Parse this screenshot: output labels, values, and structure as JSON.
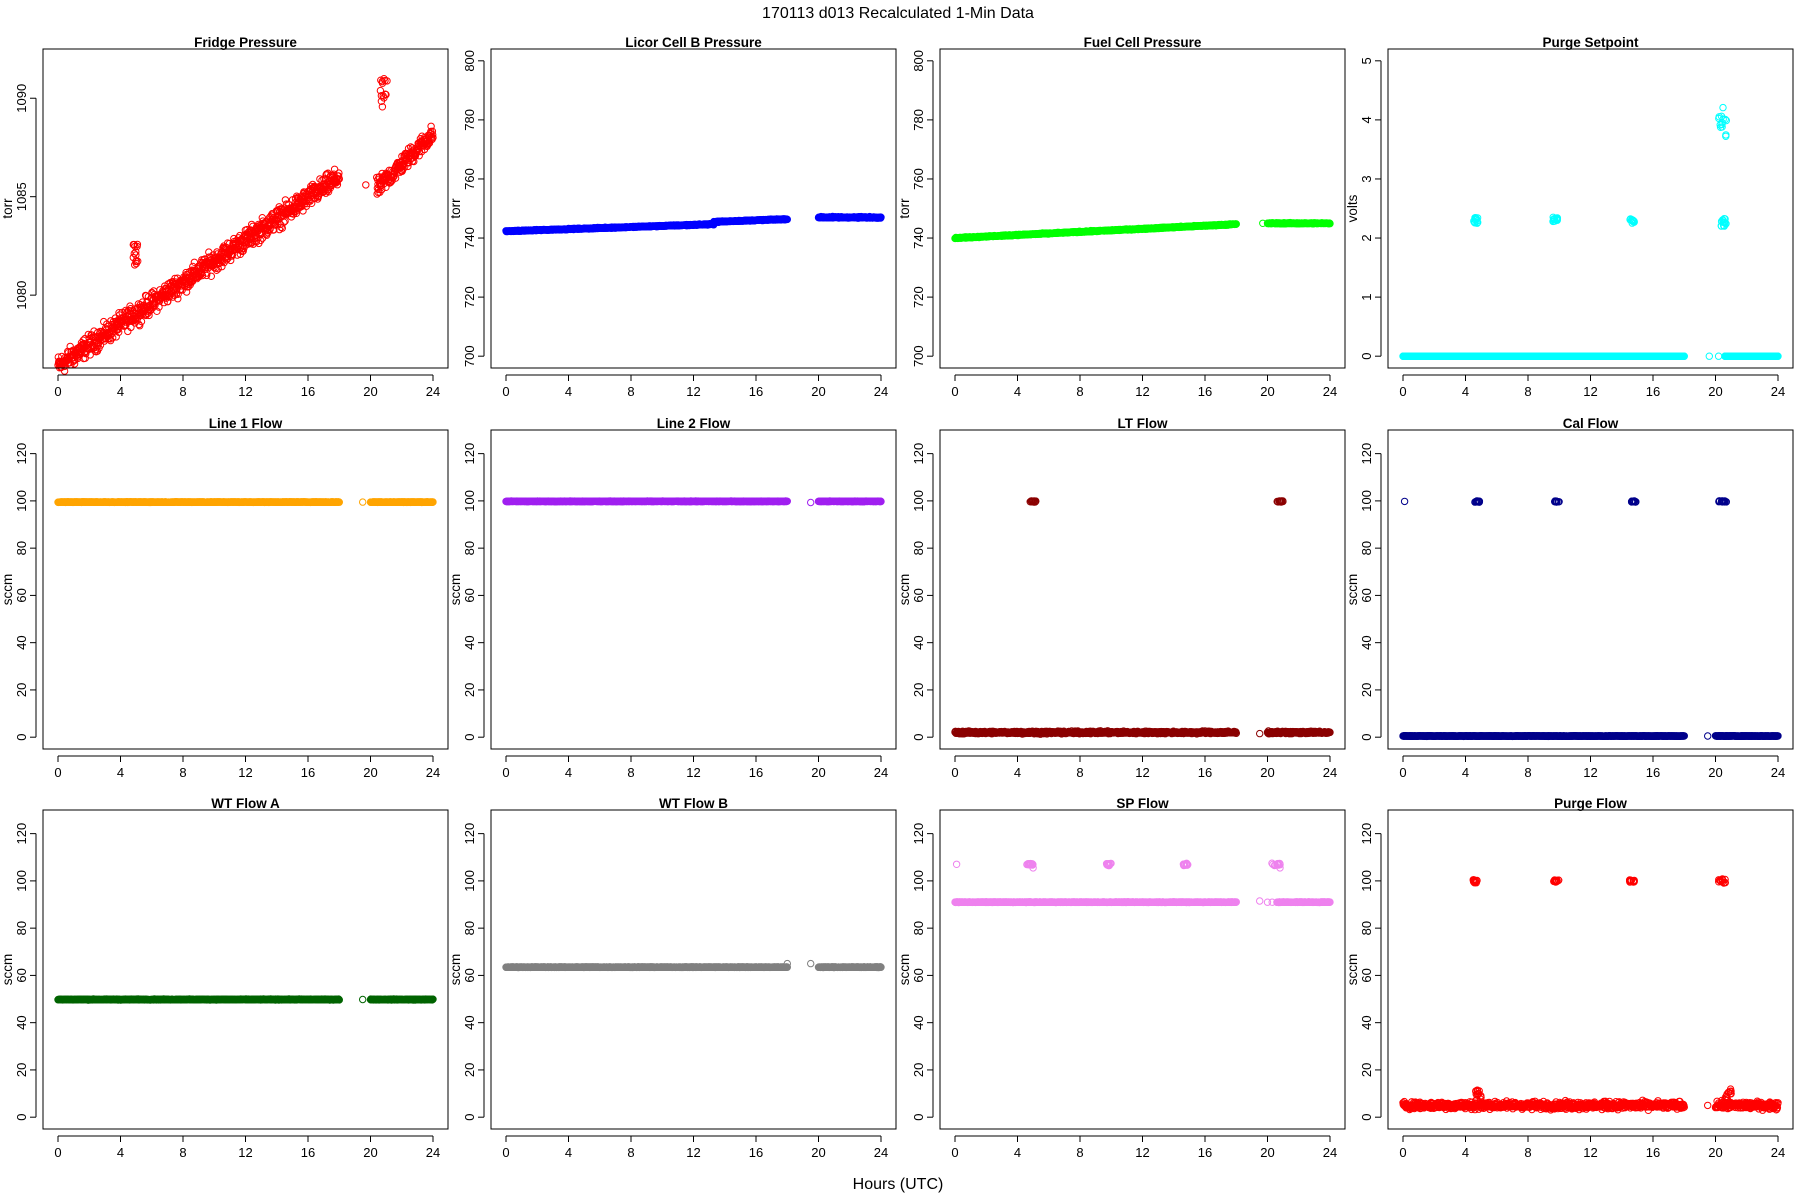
{
  "page": {
    "title": "170113   d013   Recalculated 1-Min Data",
    "xlabel": "Hours (UTC)"
  },
  "chart_data": [
    {
      "type": "scatter",
      "title": "Fridge Pressure",
      "ylabel": "torr",
      "color": "#ff0000",
      "xlim": [
        -0.96,
        24.96
      ],
      "ylim": [
        1076.3,
        1092.5
      ],
      "xticks": [
        0,
        4,
        8,
        12,
        16,
        20,
        24
      ],
      "yticks": [
        1080,
        1085,
        1090
      ],
      "segments": [
        {
          "x": [
            0.0,
            18.0
          ],
          "y": [
            1076.4,
            1086.0
          ],
          "noise": 0.45
        },
        {
          "x": [
            20.4,
            24.0
          ],
          "y": [
            1085.4,
            1088.2
          ],
          "noise": 0.4
        }
      ],
      "clusters": [
        {
          "x": [
            4.8,
            5.1
          ],
          "y": [
            1081.5,
            1082.7
          ]
        },
        {
          "x": [
            20.6,
            21.1
          ],
          "y": [
            1089.5,
            1091.0
          ]
        }
      ],
      "isolated": [
        {
          "x": 19.7,
          "y": 1085.6
        }
      ]
    },
    {
      "type": "scatter",
      "title": "Licor Cell B Pressure",
      "ylabel": "torr",
      "color": "#0000ff",
      "xlim": [
        -0.96,
        24.96
      ],
      "ylim": [
        696,
        804
      ],
      "xticks": [
        0,
        4,
        8,
        12,
        16,
        20,
        24
      ],
      "yticks": [
        700,
        720,
        740,
        760,
        780,
        800
      ],
      "segments": [
        {
          "x": [
            0.0,
            13.3
          ],
          "y": [
            742.3,
            744.7
          ],
          "noise": 0.15
        },
        {
          "x": [
            13.3,
            18.0
          ],
          "y": [
            745.5,
            746.4
          ],
          "noise": 0.15
        },
        {
          "x": [
            20.0,
            24.0
          ],
          "y": [
            747.0,
            747.0
          ],
          "noise": 0.2
        }
      ],
      "clusters": [],
      "isolated": []
    },
    {
      "type": "scatter",
      "title": "Fuel Cell Pressure",
      "ylabel": "torr",
      "color": "#00ff00",
      "xlim": [
        -0.96,
        24.96
      ],
      "ylim": [
        696,
        804
      ],
      "xticks": [
        0,
        4,
        8,
        12,
        16,
        20,
        24
      ],
      "yticks": [
        700,
        720,
        740,
        760,
        780,
        800
      ],
      "segments": [
        {
          "x": [
            0.0,
            18.0
          ],
          "y": [
            740.0,
            744.7
          ],
          "noise": 0.15
        },
        {
          "x": [
            20.0,
            24.0
          ],
          "y": [
            745.0,
            745.0
          ],
          "noise": 0.15
        }
      ],
      "clusters": [],
      "isolated": [
        {
          "x": 19.7,
          "y": 745.0
        }
      ]
    },
    {
      "type": "scatter",
      "title": "Purge Setpoint",
      "ylabel": "volts",
      "color": "#00ffff",
      "xlim": [
        -0.96,
        24.96
      ],
      "ylim": [
        -0.2,
        5.2
      ],
      "xticks": [
        0,
        4,
        8,
        12,
        16,
        20,
        24
      ],
      "yticks": [
        0,
        1,
        2,
        3,
        4,
        5
      ],
      "segments": [
        {
          "x": [
            0.0,
            18.0
          ],
          "y": [
            0.0,
            0.0
          ],
          "noise": 0.0
        },
        {
          "x": [
            20.6,
            24.0
          ],
          "y": [
            0.0,
            0.0
          ],
          "noise": 0.0
        }
      ],
      "clusters": [
        {
          "x": [
            4.5,
            4.8
          ],
          "y": [
            2.25,
            2.35
          ]
        },
        {
          "x": [
            9.6,
            9.9
          ],
          "y": [
            2.28,
            2.36
          ]
        },
        {
          "x": [
            14.5,
            14.8
          ],
          "y": [
            2.25,
            2.35
          ]
        },
        {
          "x": [
            20.1,
            20.7
          ],
          "y": [
            2.2,
            2.35
          ]
        },
        {
          "x": [
            20.2,
            20.7
          ],
          "y": [
            3.7,
            4.35
          ]
        }
      ],
      "isolated": [
        {
          "x": 19.6,
          "y": 0.0
        },
        {
          "x": 20.2,
          "y": 0.0
        }
      ]
    },
    {
      "type": "scatter",
      "title": "Line 1 Flow",
      "ylabel": "sccm",
      "color": "#ffa500",
      "xlim": [
        -0.96,
        24.96
      ],
      "ylim": [
        -5,
        130
      ],
      "xticks": [
        0,
        4,
        8,
        12,
        16,
        20,
        24
      ],
      "yticks": [
        0,
        20,
        40,
        60,
        80,
        100,
        120
      ],
      "segments": [
        {
          "x": [
            0.0,
            18.0
          ],
          "y": [
            99.5,
            99.5
          ],
          "noise": 0.1
        },
        {
          "x": [
            20.0,
            24.0
          ],
          "y": [
            99.5,
            99.5
          ],
          "noise": 0.1
        }
      ],
      "clusters": [],
      "isolated": [
        {
          "x": 19.5,
          "y": 99.5
        }
      ]
    },
    {
      "type": "scatter",
      "title": "Line 2 Flow",
      "ylabel": "sccm",
      "color": "#a020f0",
      "xlim": [
        -0.96,
        24.96
      ],
      "ylim": [
        -5,
        130
      ],
      "xticks": [
        0,
        4,
        8,
        12,
        16,
        20,
        24
      ],
      "yticks": [
        0,
        20,
        40,
        60,
        80,
        100,
        120
      ],
      "segments": [
        {
          "x": [
            0.0,
            18.0
          ],
          "y": [
            99.8,
            99.8
          ],
          "noise": 0.1
        },
        {
          "x": [
            20.0,
            24.0
          ],
          "y": [
            99.8,
            99.8
          ],
          "noise": 0.1
        }
      ],
      "clusters": [],
      "isolated": [
        {
          "x": 19.5,
          "y": 99.3
        }
      ]
    },
    {
      "type": "scatter",
      "title": "LT Flow",
      "ylabel": "sccm",
      "color": "#8b0000",
      "xlim": [
        -0.96,
        24.96
      ],
      "ylim": [
        -5,
        130
      ],
      "xticks": [
        0,
        4,
        8,
        12,
        16,
        20,
        24
      ],
      "yticks": [
        0,
        20,
        40,
        60,
        80,
        100,
        120
      ],
      "segments": [
        {
          "x": [
            0.0,
            18.0
          ],
          "y": [
            2.0,
            2.0
          ],
          "noise": 0.45
        },
        {
          "x": [
            20.0,
            24.0
          ],
          "y": [
            2.0,
            2.0
          ],
          "noise": 0.4
        }
      ],
      "clusters": [
        {
          "x": [
            4.8,
            5.2
          ],
          "y": [
            99.5,
            100.0
          ]
        },
        {
          "x": [
            20.6,
            21.0
          ],
          "y": [
            99.5,
            100.0
          ]
        }
      ],
      "isolated": [
        {
          "x": 19.5,
          "y": 1.5
        }
      ]
    },
    {
      "type": "scatter",
      "title": "Cal Flow",
      "ylabel": "sccm",
      "color": "#00008b",
      "xlim": [
        -0.96,
        24.96
      ],
      "ylim": [
        -5,
        130
      ],
      "xticks": [
        0,
        4,
        8,
        12,
        16,
        20,
        24
      ],
      "yticks": [
        0,
        20,
        40,
        60,
        80,
        100,
        120
      ],
      "segments": [
        {
          "x": [
            0.0,
            18.0
          ],
          "y": [
            0.5,
            0.5
          ],
          "noise": 0.1
        },
        {
          "x": [
            20.0,
            24.0
          ],
          "y": [
            0.5,
            0.5
          ],
          "noise": 0.1
        }
      ],
      "clusters": [
        {
          "x": [
            4.6,
            4.9
          ],
          "y": [
            99.5,
            100.0
          ]
        },
        {
          "x": [
            9.7,
            10.0
          ],
          "y": [
            99.5,
            100.0
          ]
        },
        {
          "x": [
            14.6,
            14.9
          ],
          "y": [
            99.5,
            100.0
          ]
        },
        {
          "x": [
            20.2,
            20.8
          ],
          "y": [
            99.5,
            100.0
          ]
        }
      ],
      "isolated": [
        {
          "x": 0.1,
          "y": 99.8
        },
        {
          "x": 19.5,
          "y": 0.5
        }
      ]
    },
    {
      "type": "scatter",
      "title": "WT Flow A",
      "ylabel": "sccm",
      "color": "#006400",
      "xlim": [
        -0.96,
        24.96
      ],
      "ylim": [
        -5,
        130
      ],
      "xticks": [
        0,
        4,
        8,
        12,
        16,
        20,
        24
      ],
      "yticks": [
        0,
        20,
        40,
        60,
        80,
        100,
        120
      ],
      "segments": [
        {
          "x": [
            0.0,
            18.0
          ],
          "y": [
            49.8,
            49.8
          ],
          "noise": 0.15
        },
        {
          "x": [
            20.0,
            24.0
          ],
          "y": [
            49.8,
            49.8
          ],
          "noise": 0.15
        }
      ],
      "clusters": [],
      "isolated": [
        {
          "x": 19.5,
          "y": 49.8
        }
      ]
    },
    {
      "type": "scatter",
      "title": "WT Flow B",
      "ylabel": "sccm",
      "color": "#808080",
      "xlim": [
        -0.96,
        24.96
      ],
      "ylim": [
        -5,
        130
      ],
      "xticks": [
        0,
        4,
        8,
        12,
        16,
        20,
        24
      ],
      "yticks": [
        0,
        20,
        40,
        60,
        80,
        100,
        120
      ],
      "segments": [
        {
          "x": [
            0.0,
            18.0
          ],
          "y": [
            63.5,
            63.5
          ],
          "noise": 0.1
        },
        {
          "x": [
            20.0,
            24.0
          ],
          "y": [
            63.5,
            63.5
          ],
          "noise": 0.1
        }
      ],
      "clusters": [],
      "isolated": [
        {
          "x": 18.0,
          "y": 65.0
        },
        {
          "x": 19.5,
          "y": 65.0
        }
      ]
    },
    {
      "type": "scatter",
      "title": "SP Flow",
      "ylabel": "sccm",
      "color": "#ee82ee",
      "xlim": [
        -0.96,
        24.96
      ],
      "ylim": [
        -5,
        130
      ],
      "xticks": [
        0,
        4,
        8,
        12,
        16,
        20,
        24
      ],
      "yticks": [
        0,
        20,
        40,
        60,
        80,
        100,
        120
      ],
      "segments": [
        {
          "x": [
            0.0,
            18.0
          ],
          "y": [
            91.0,
            91.0
          ],
          "noise": 0.1
        },
        {
          "x": [
            20.6,
            24.0
          ],
          "y": [
            91.0,
            91.0
          ],
          "noise": 0.1
        }
      ],
      "clusters": [
        {
          "x": [
            4.6,
            5.0
          ],
          "y": [
            106.5,
            107.5
          ]
        },
        {
          "x": [
            9.7,
            10.0
          ],
          "y": [
            106.5,
            107.5
          ]
        },
        {
          "x": [
            14.6,
            14.9
          ],
          "y": [
            106.5,
            107.5
          ]
        },
        {
          "x": [
            20.2,
            20.8
          ],
          "y": [
            106.5,
            107.5
          ]
        }
      ],
      "isolated": [
        {
          "x": 0.1,
          "y": 107.0
        },
        {
          "x": 5.0,
          "y": 105.5
        },
        {
          "x": 20.8,
          "y": 105.5
        },
        {
          "x": 19.5,
          "y": 91.5
        },
        {
          "x": 20.0,
          "y": 91.0
        },
        {
          "x": 20.3,
          "y": 91.0
        }
      ]
    },
    {
      "type": "scatter",
      "title": "Purge Flow",
      "ylabel": "sccm",
      "color": "#ff0000",
      "xlim": [
        -0.96,
        24.96
      ],
      "ylim": [
        -5,
        130
      ],
      "xticks": [
        0,
        4,
        8,
        12,
        16,
        20,
        24
      ],
      "yticks": [
        0,
        20,
        40,
        60,
        80,
        100,
        120
      ],
      "segments": [
        {
          "x": [
            0.0,
            18.0
          ],
          "y": [
            5.0,
            5.0
          ],
          "noise": 1.3
        },
        {
          "x": [
            20.0,
            24.0
          ],
          "y": [
            5.0,
            5.0
          ],
          "noise": 1.3
        }
      ],
      "clusters": [
        {
          "x": [
            4.5,
            4.8
          ],
          "y": [
            99.0,
            100.5
          ]
        },
        {
          "x": [
            9.6,
            10.0
          ],
          "y": [
            99.5,
            100.5
          ]
        },
        {
          "x": [
            14.5,
            14.8
          ],
          "y": [
            99.5,
            100.5
          ]
        },
        {
          "x": [
            20.2,
            20.8
          ],
          "y": [
            99.0,
            101.0
          ]
        },
        {
          "x": [
            4.6,
            5.0
          ],
          "y": [
            7.0,
            11.5
          ]
        },
        {
          "x": [
            20.6,
            21.0
          ],
          "y": [
            7.0,
            12.0
          ]
        }
      ],
      "isolated": [
        {
          "x": 19.5,
          "y": 5.0
        }
      ]
    }
  ]
}
